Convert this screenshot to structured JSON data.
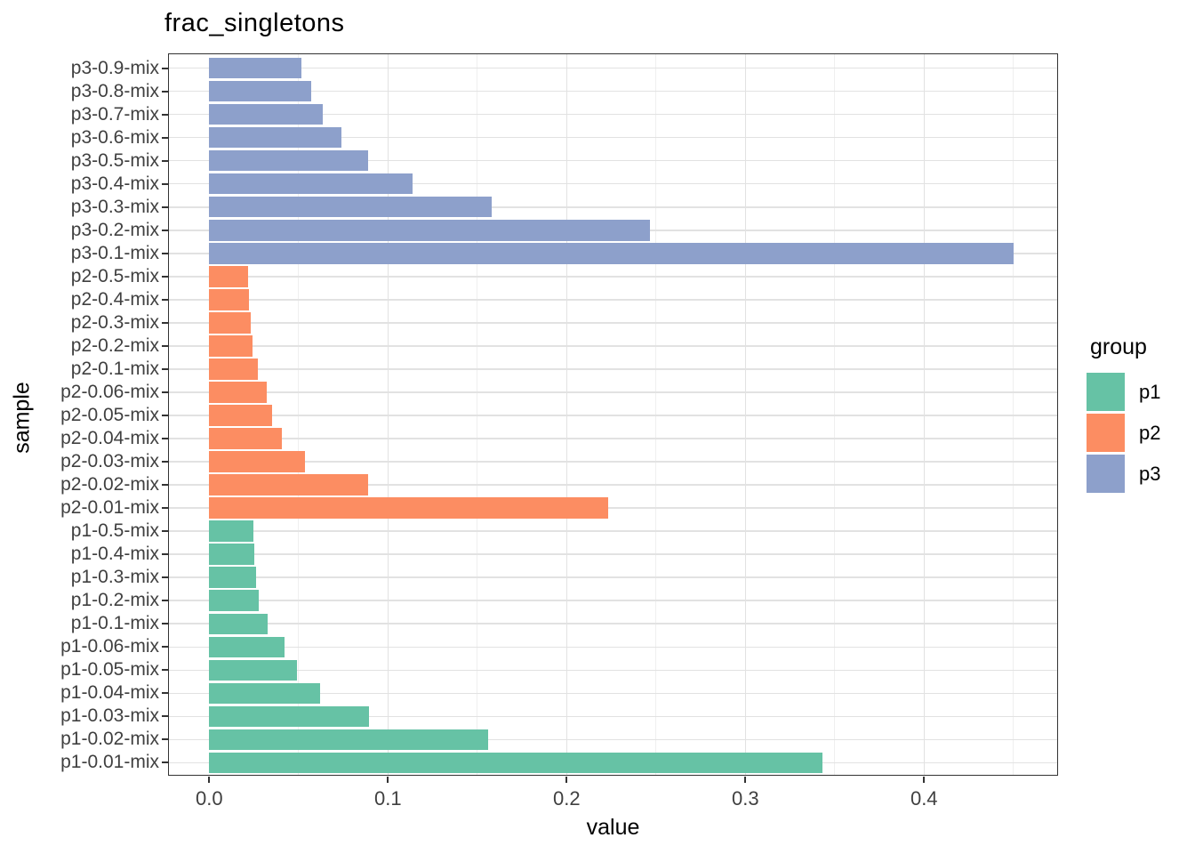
{
  "title": "frac_singletons",
  "axes": {
    "x_label": "value",
    "y_label": "sample"
  },
  "legend": {
    "title": "group",
    "items": [
      {
        "label": "p1",
        "color": "#66C2A5"
      },
      {
        "label": "p2",
        "color": "#FC8D62"
      },
      {
        "label": "p3",
        "color": "#8DA0CB"
      }
    ]
  },
  "style_colors": {
    "grid_major": "#E2E2E2",
    "grid_minor": "#EFEFEF",
    "panel_border": "#333333",
    "axis_text": "#404040",
    "title_text": "#000000"
  },
  "chart_data": {
    "type": "bar",
    "orientation": "horizontal",
    "title": "frac_singletons",
    "xlabel": "value",
    "ylabel": "sample",
    "legend_title": "group",
    "legend_position": "right",
    "grid": true,
    "xlim": [
      -0.02254,
      0.4755
    ],
    "x_ticks": [
      0.0,
      0.1,
      0.2,
      0.3,
      0.4
    ],
    "x_minor_step": 0.05,
    "bar_fraction": 0.9,
    "categories": [
      "p3-0.9-mix",
      "p3-0.8-mix",
      "p3-0.7-mix",
      "p3-0.6-mix",
      "p3-0.5-mix",
      "p3-0.4-mix",
      "p3-0.3-mix",
      "p3-0.2-mix",
      "p3-0.1-mix",
      "p2-0.5-mix",
      "p2-0.4-mix",
      "p2-0.3-mix",
      "p2-0.2-mix",
      "p2-0.1-mix",
      "p2-0.06-mix",
      "p2-0.05-mix",
      "p2-0.04-mix",
      "p2-0.03-mix",
      "p2-0.02-mix",
      "p2-0.01-mix",
      "p1-0.5-mix",
      "p1-0.4-mix",
      "p1-0.3-mix",
      "p1-0.2-mix",
      "p1-0.1-mix",
      "p1-0.06-mix",
      "p1-0.05-mix",
      "p1-0.04-mix",
      "p1-0.03-mix",
      "p1-0.02-mix",
      "p1-0.01-mix"
    ],
    "values": [
      0.0517,
      0.0571,
      0.0637,
      0.0738,
      0.0889,
      0.1136,
      0.1579,
      0.2466,
      0.45,
      0.0216,
      0.0222,
      0.0231,
      0.0241,
      0.0272,
      0.0322,
      0.0352,
      0.0406,
      0.0534,
      0.0888,
      0.2234,
      0.0246,
      0.0254,
      0.0261,
      0.0277,
      0.0327,
      0.0421,
      0.0493,
      0.0622,
      0.0896,
      0.1562,
      0.3431
    ],
    "groups": [
      "p3",
      "p3",
      "p3",
      "p3",
      "p3",
      "p3",
      "p3",
      "p3",
      "p3",
      "p2",
      "p2",
      "p2",
      "p2",
      "p2",
      "p2",
      "p2",
      "p2",
      "p2",
      "p2",
      "p2",
      "p1",
      "p1",
      "p1",
      "p1",
      "p1",
      "p1",
      "p1",
      "p1",
      "p1",
      "p1",
      "p1"
    ],
    "group_colors": {
      "p1": "#66C2A5",
      "p2": "#FC8D62",
      "p3": "#8DA0CB"
    }
  }
}
